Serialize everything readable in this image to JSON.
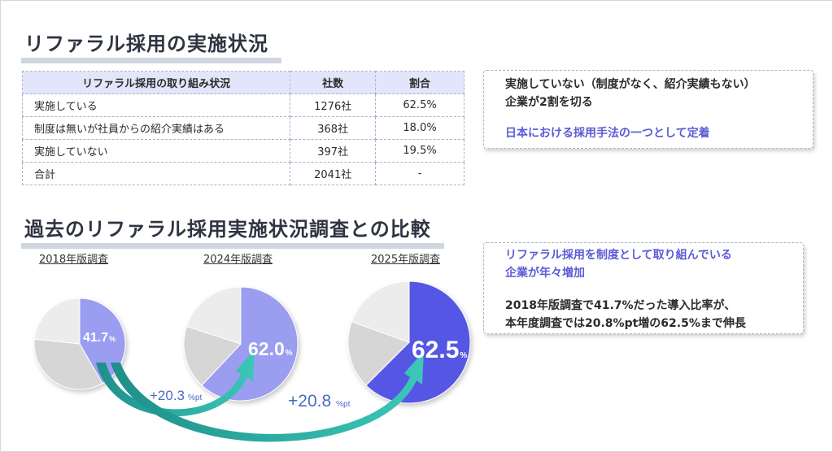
{
  "title_status": "リファラル採用の実施状況",
  "table": {
    "headers": [
      "リファラル採用の取り組み状況",
      "社数",
      "割合"
    ],
    "rows": [
      [
        "実施している",
        "1276社",
        "62.5%"
      ],
      [
        "制度は無いが社員からの紹介実績はある",
        "368社",
        "18.0%"
      ],
      [
        "実施していない",
        "397社",
        "19.5%"
      ],
      [
        "合計",
        "2041社",
        "-"
      ]
    ]
  },
  "note1": {
    "line1": "実施していない（制度がなく、紹介実績もない）",
    "line2": "企業が2割を切る",
    "highlight": "日本における採用手法の一つとして定着"
  },
  "title_compare": "過去のリファラル採用実施状況調査との比較",
  "pies": {
    "label_2018": "2018年版調査",
    "label_2024": "2024年版調査",
    "label_2025": "2025年版調査",
    "value_2018": "41.7",
    "value_2024": "62.0",
    "value_2025": "62.5",
    "percent_sign": "%",
    "diff1": "+20.3",
    "diff2": "+20.8",
    "diff_unit": "%pt"
  },
  "note2": {
    "highlight_line1": "リファラル採用を制度として取り組んでいる",
    "highlight_line2": "企業が年々増加",
    "line1": "2018年版調査で41.7%だった導入比率が、",
    "line2": "本年度調査では20.8%pt増の62.5%まで伸長"
  },
  "chart_data": [
    {
      "type": "pie",
      "title": "2018年版調査",
      "values": [
        41.7,
        35.0,
        23.3
      ],
      "colors": [
        "#9b9df0",
        "#d6d6d6",
        "#ececec"
      ]
    },
    {
      "type": "pie",
      "title": "2024年版調査",
      "values": [
        62.0,
        18.0,
        20.0
      ],
      "colors": [
        "#9b9df0",
        "#d6d6d6",
        "#ececec"
      ]
    },
    {
      "type": "pie",
      "title": "2025年版調査",
      "values": [
        62.5,
        18.0,
        19.5
      ],
      "colors": [
        "#5757e4",
        "#d6d6d6",
        "#ececec"
      ]
    }
  ],
  "colors": {
    "accent": "#5b5bd6",
    "pie_light": "#9b9df0",
    "pie_dark": "#5757e4",
    "arrow": "#28b5a6",
    "diff_text": "#4a6bc4"
  }
}
